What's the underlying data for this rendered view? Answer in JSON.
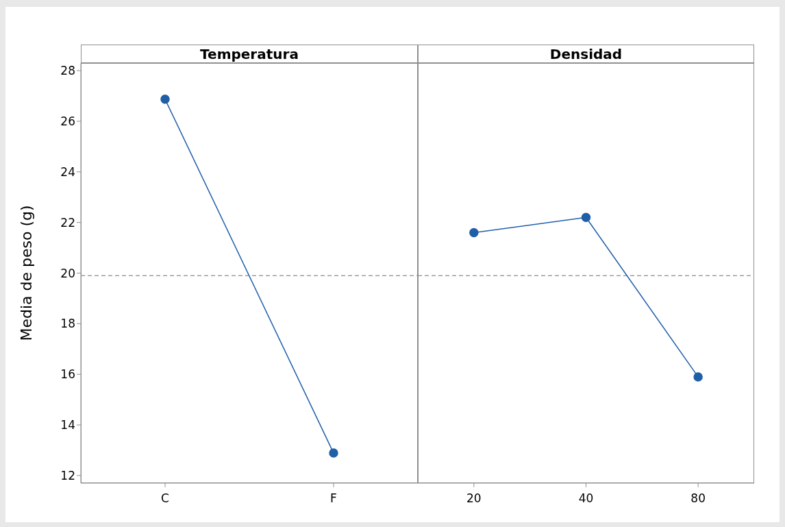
{
  "chart_data": [
    {
      "type": "line",
      "title": "Temperatura",
      "ylabel": "Media de peso (g)",
      "categories": [
        "C",
        "F"
      ],
      "series": [
        {
          "color": "#1f5fa8",
          "values": [
            26.87,
            12.89
          ]
        }
      ],
      "ylim": [
        11.7,
        28.3
      ],
      "yticks": [
        12,
        14,
        16,
        18,
        20,
        22,
        24,
        26,
        28
      ],
      "ref_lines": [
        {
          "axis": "y",
          "value": 19.9,
          "line_style": "dashed",
          "color": "#a0a0a0"
        }
      ],
      "marker": "circle",
      "grid": false,
      "legend": false
    },
    {
      "type": "line",
      "title": "Densidad",
      "categories": [
        "20",
        "40",
        "80"
      ],
      "series": [
        {
          "color": "#1f5fa8",
          "values": [
            21.6,
            22.2,
            15.9
          ]
        }
      ],
      "ylim": [
        11.7,
        28.3
      ],
      "yticks": [
        12,
        14,
        16,
        18,
        20,
        22,
        24,
        26,
        28
      ],
      "ref_lines": [
        {
          "axis": "y",
          "value": 19.9,
          "line_style": "dashed",
          "color": "#a0a0a0"
        }
      ],
      "marker": "circle",
      "grid": false,
      "legend": false,
      "tick_labels": "x"
    }
  ]
}
